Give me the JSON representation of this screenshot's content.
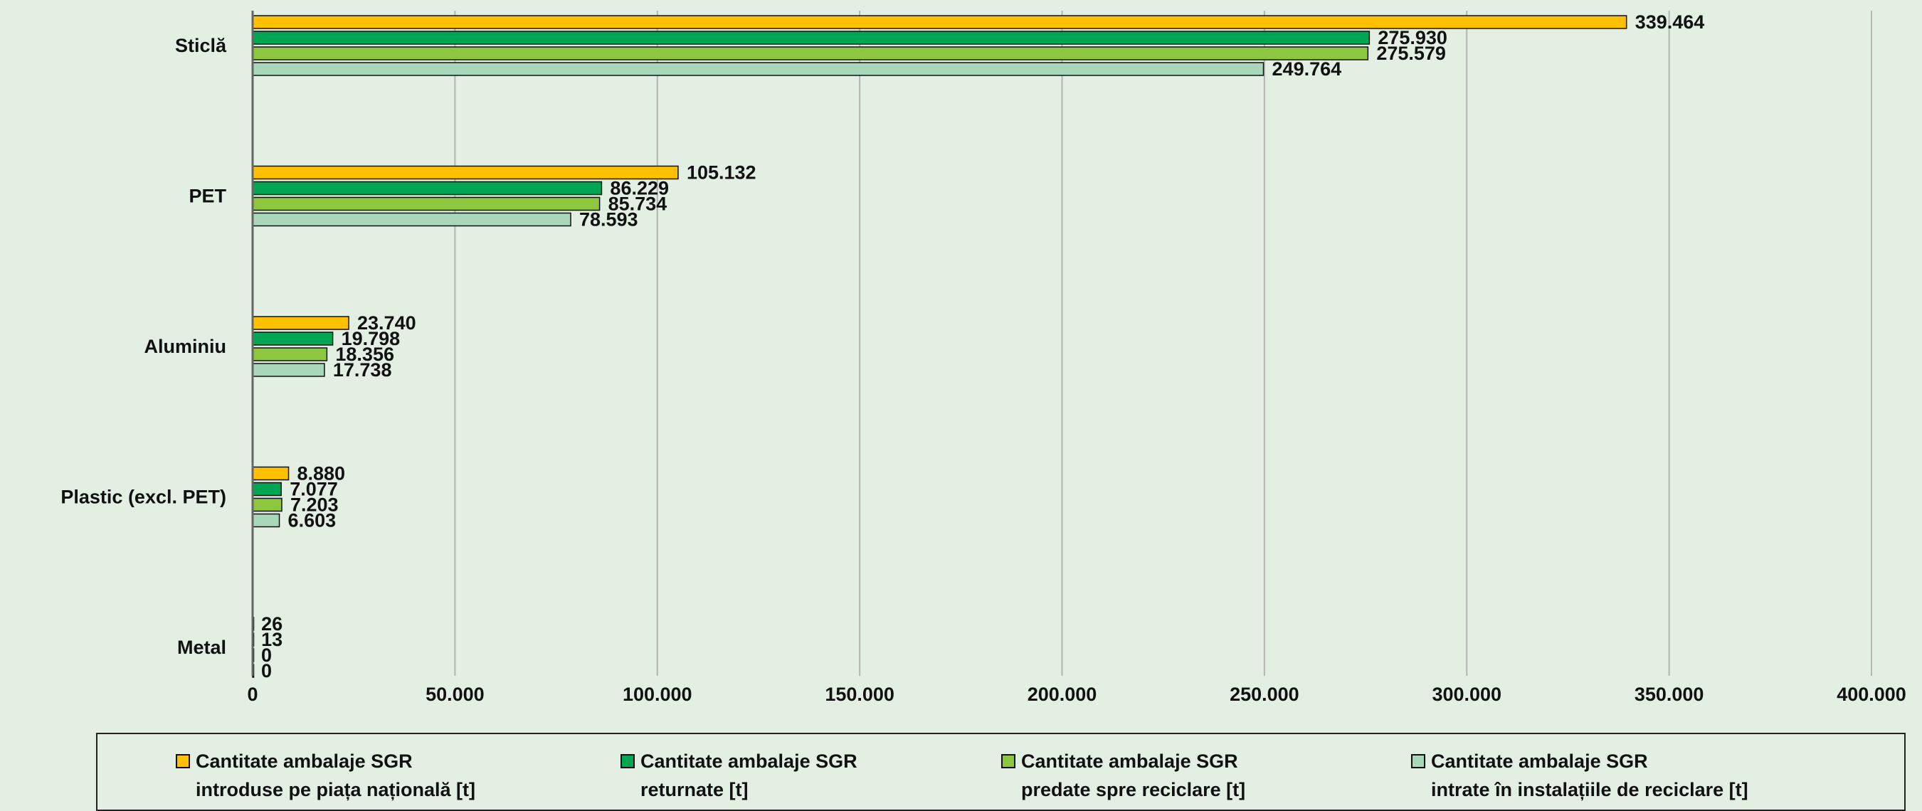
{
  "chart_data": {
    "type": "bar",
    "orientation": "horizontal",
    "title": "",
    "xlabel": "",
    "ylabel": "",
    "categories": [
      "Sticlă",
      "PET",
      "Aluminiu",
      "Plastic (excl. PET)",
      "Metal"
    ],
    "series": [
      {
        "name": "Cantitate ambalaje SGR\nintroduse pe piața națională [t]",
        "color": "#ffc000",
        "values": [
          339464,
          105132,
          23740,
          8880,
          26
        ],
        "labels": [
          "339.464",
          "105.132",
          "23.740",
          "8.880",
          "26"
        ]
      },
      {
        "name": "Cantitate ambalaje SGR\nreturnate [t]",
        "color": "#00a651",
        "values": [
          275930,
          86229,
          19798,
          7077,
          13
        ],
        "labels": [
          "275.930",
          "86.229",
          "19.798",
          "7.077",
          "13"
        ]
      },
      {
        "name": "Cantitate ambalaje SGR\npredate spre reciclare  [t]",
        "color": "#8dc63f",
        "values": [
          275579,
          85734,
          18356,
          7203,
          0
        ],
        "labels": [
          "275.579",
          "85.734",
          "18.356",
          "7.203",
          "0"
        ]
      },
      {
        "name": "Cantitate ambalaje SGR\nintrate în instalațiile de reciclare  [t]",
        "color": "#a8d8b9",
        "values": [
          249764,
          78593,
          17738,
          6603,
          0
        ],
        "labels": [
          "249.764",
          "78.593",
          "17.738",
          "6.603",
          "0"
        ]
      }
    ],
    "xlim": [
      0,
      400000
    ],
    "xticks": [
      0,
      50000,
      100000,
      150000,
      200000,
      250000,
      300000,
      350000,
      400000
    ],
    "xtick_labels": [
      "0",
      "50.000",
      "100.000",
      "150.000",
      "200.000",
      "250.000",
      "300.000",
      "350.000",
      "400.000"
    ],
    "grid": "vertical",
    "legend_position": "bottom",
    "gridline_color": "#b4b4b4",
    "bar_border_color": "#111111"
  }
}
